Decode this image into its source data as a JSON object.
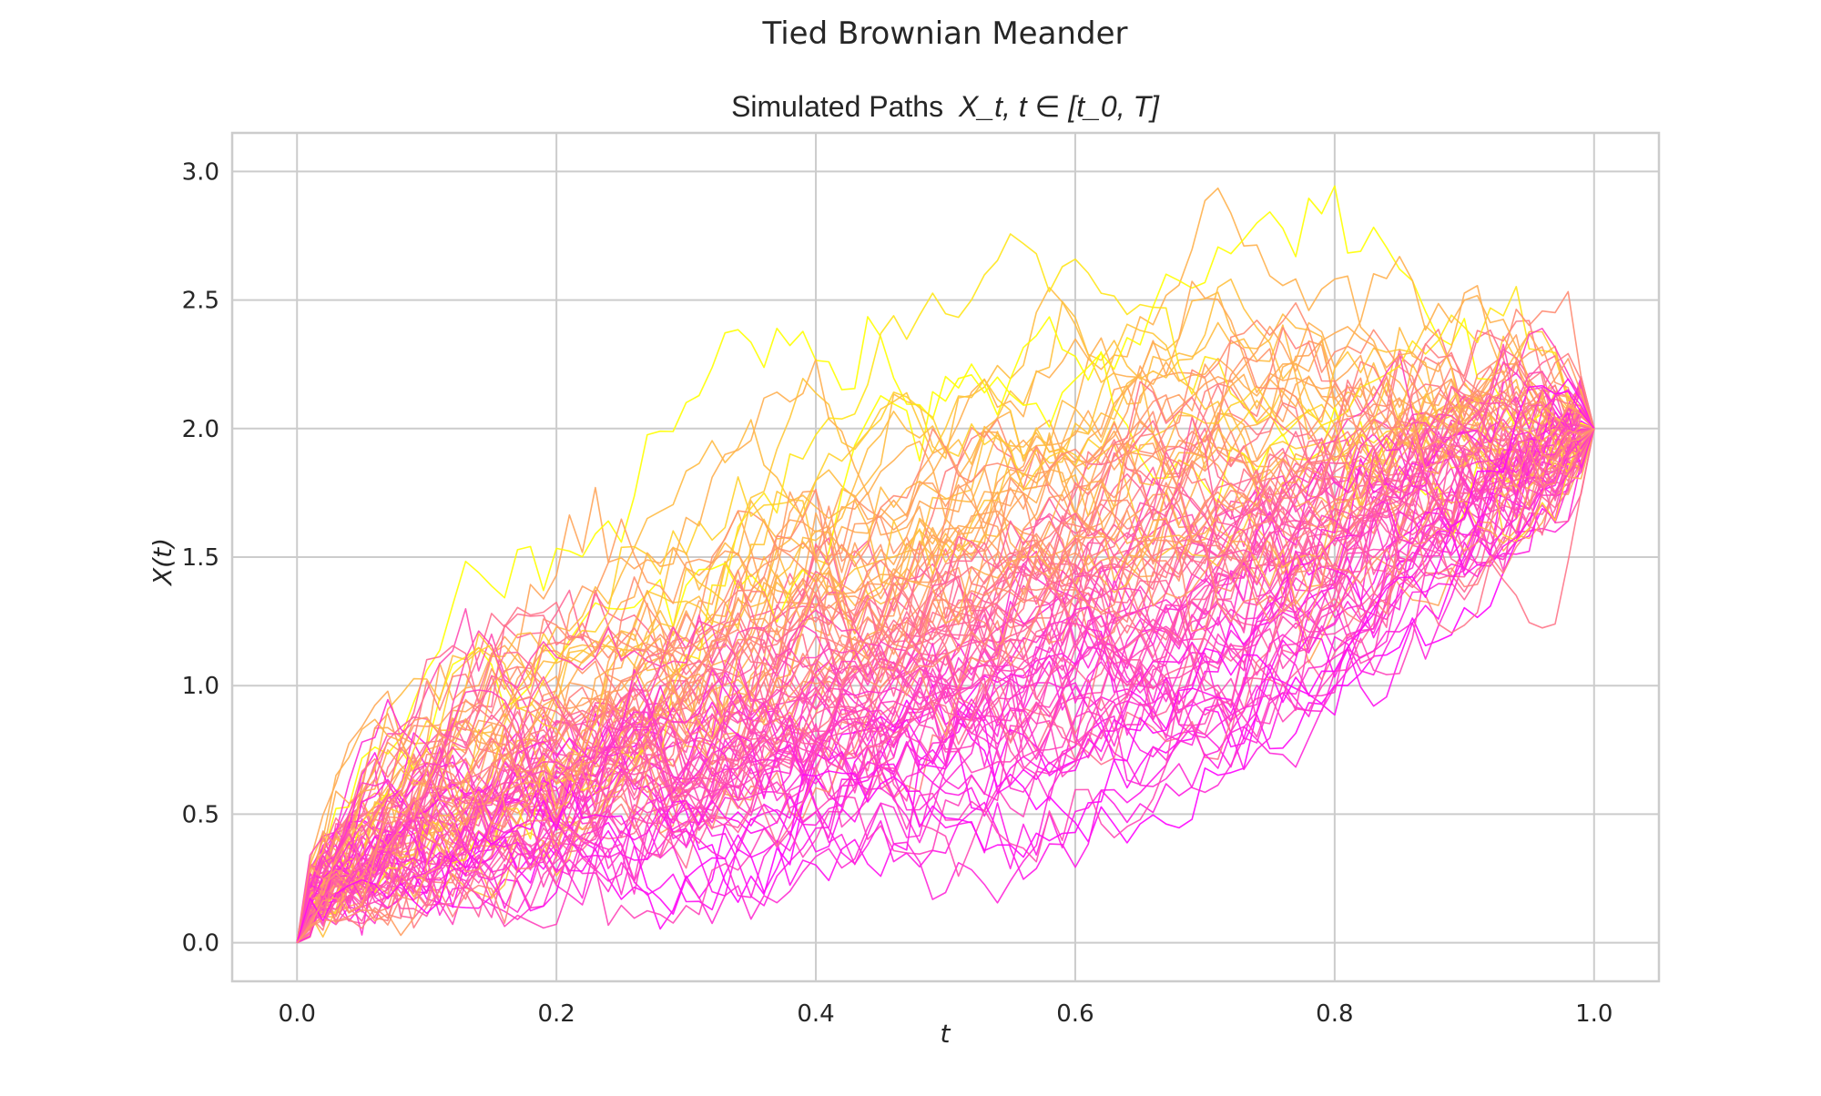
{
  "figure": {
    "suptitle": "Tied Brownian Meander"
  },
  "chart_data": {
    "type": "line",
    "title_prefix": "Simulated Paths",
    "title_math": "X_t, t ∈ [t_0, T]",
    "xlabel": "t",
    "ylabel": "X(t)",
    "xlim": [
      -0.05,
      1.05
    ],
    "ylim": [
      -0.15,
      3.15
    ],
    "x_ticks": [
      0.0,
      0.2,
      0.4,
      0.6,
      0.8,
      1.0
    ],
    "x_tick_labels": [
      "0.0",
      "0.2",
      "0.4",
      "0.6",
      "0.8",
      "1.0"
    ],
    "y_ticks": [
      0.0,
      0.5,
      1.0,
      1.5,
      2.0,
      2.5,
      3.0
    ],
    "y_tick_labels": [
      "0.0",
      "0.5",
      "1.0",
      "1.5",
      "2.0",
      "2.5",
      "3.0"
    ],
    "grid": true,
    "t0": 0.0,
    "T": 1.0,
    "start_value": 0.0,
    "end_value": 2.0,
    "n_paths": 100,
    "n_steps": 100,
    "colormap": "spring",
    "colormap_colors": [
      "#ff00ff",
      "#ffff00"
    ],
    "color_by": "final-increment endpoint value",
    "peak_value_approx": 3.0,
    "series_description": "100 simulated tied Brownian meander paths from (0, 0) to (1, 2)"
  }
}
